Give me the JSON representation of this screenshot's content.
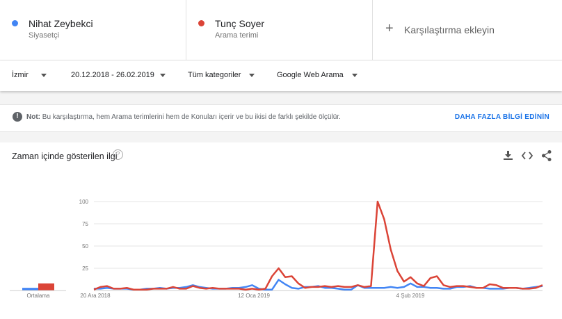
{
  "terms": [
    {
      "name": "Nihat Zeybekci",
      "sub": "Siyasetçi",
      "color": "#4285f4"
    },
    {
      "name": "Tunç Soyer",
      "sub": "Arama terimi",
      "color": "#db4437"
    }
  ],
  "add_compare": {
    "plus": "+",
    "label": "Karşılaştırma ekleyin"
  },
  "filters": {
    "region": "İzmir",
    "date_range": "20.12.2018 - 26.02.2019",
    "category": "Tüm kategoriler",
    "search_type": "Google Web Arama"
  },
  "note": {
    "icon": "!",
    "label": "Not:",
    "text": "Bu karşılaştırma, hem Arama terimlerini hem de Konuları içerir ve bu ikisi de farklı şekilde ölçülür.",
    "link": "DAHA FAZLA BİLGİ EDİNİN"
  },
  "card": {
    "title": "Zaman içinde gösterilen ilgi",
    "help": "?"
  },
  "icons": [
    "download-icon",
    "embed-icon",
    "share-icon",
    "info-icon",
    "help-icon"
  ],
  "chart_data": {
    "type": "line",
    "yticks": [
      "100",
      "75",
      "50",
      "25"
    ],
    "ylim": [
      0,
      100
    ],
    "xtick_labels": [
      "20 Ara 2018",
      "12 Oca 2019",
      "4 Şub 2019"
    ],
    "average_label": "Ortalama",
    "averages": [
      {
        "name": "Nihat Zeybekci",
        "value": 3
      },
      {
        "name": "Tunç Soyer",
        "value": 8
      }
    ],
    "series": [
      {
        "name": "Nihat Zeybekci",
        "color": "#4285f4",
        "values": [
          2,
          2,
          3,
          2,
          2,
          2,
          1,
          1,
          2,
          2,
          3,
          2,
          3,
          3,
          4,
          6,
          4,
          3,
          2,
          2,
          2,
          3,
          3,
          4,
          6,
          2,
          1,
          1,
          12,
          7,
          3,
          2,
          4,
          4,
          5,
          3,
          3,
          2,
          1,
          1,
          6,
          3,
          3,
          3,
          3,
          4,
          3,
          4,
          8,
          4,
          4,
          3,
          3,
          2,
          2,
          4,
          4,
          5,
          3,
          3,
          2,
          2,
          2,
          3,
          3,
          2,
          3,
          4,
          5
        ]
      },
      {
        "name": "Tunç Soyer",
        "color": "#db4437",
        "values": [
          1,
          4,
          5,
          2,
          2,
          3,
          1,
          1,
          1,
          2,
          2,
          2,
          4,
          2,
          2,
          5,
          3,
          2,
          3,
          2,
          2,
          2,
          2,
          1,
          2,
          1,
          2,
          16,
          25,
          15,
          16,
          8,
          3,
          4,
          4,
          5,
          4,
          5,
          4,
          4,
          6,
          4,
          5,
          100,
          80,
          46,
          22,
          10,
          15,
          8,
          5,
          14,
          16,
          6,
          4,
          5,
          5,
          4,
          3,
          3,
          7,
          6,
          3,
          3,
          3,
          2,
          2,
          3,
          6
        ]
      }
    ]
  }
}
